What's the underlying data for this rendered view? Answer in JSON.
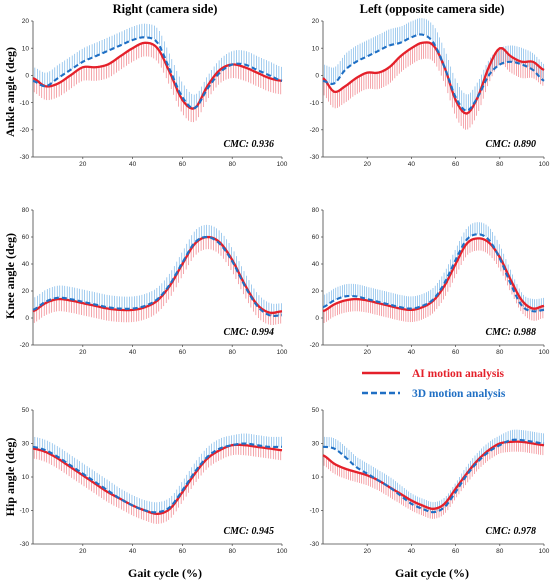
{
  "figure": {
    "column_titles": [
      "Right (camera side)",
      "Left (opposite camera side)"
    ],
    "row_labels": [
      "Ankle angle (deg)",
      "Knee angle (deg)",
      "Hip angle (deg)"
    ],
    "xlabel": "Gait cycle (%)"
  },
  "legend": {
    "placement": "between middle and bottom right panels",
    "entries": [
      {
        "name": "AI motion analysis",
        "color": "#e4202a",
        "style": "solid"
      },
      {
        "name": "3D motion analysis",
        "color": "#1f6fc4",
        "style": "dashed"
      }
    ]
  },
  "colors": {
    "ai": "#e4202a",
    "ai_band": "#f08088",
    "mocap": "#1f6fc4",
    "mocap_band": "#7ab6e8"
  },
  "chart_data": [
    {
      "type": "line",
      "row": "ankle",
      "side": "right",
      "annotation": "CMC: 0.936",
      "xlim": [
        0,
        100
      ],
      "ylim": [
        -30,
        20
      ],
      "xticks": [
        20,
        40,
        60,
        80,
        100
      ],
      "yticks": [
        -30,
        -20,
        -10,
        0,
        10,
        20
      ],
      "x": [
        0,
        5,
        10,
        15,
        20,
        25,
        30,
        35,
        40,
        45,
        50,
        55,
        60,
        65,
        70,
        75,
        80,
        85,
        90,
        95,
        100
      ],
      "series": [
        {
          "name": "AI motion analysis",
          "values": [
            -1,
            -4,
            -3,
            0,
            3,
            3,
            4,
            7,
            10,
            12,
            10,
            1,
            -9,
            -12,
            -4,
            2,
            4,
            3,
            1,
            -1,
            -2
          ],
          "band": 5
        },
        {
          "name": "3D motion analysis",
          "values": [
            -2,
            -4,
            -1,
            2,
            5,
            7,
            9,
            11,
            13,
            14,
            12,
            2,
            -8,
            -12,
            -5,
            1,
            4,
            4,
            2,
            0,
            -2
          ],
          "band": 5
        }
      ]
    },
    {
      "type": "line",
      "row": "ankle",
      "side": "left",
      "annotation": "CMC: 0.890",
      "xlim": [
        0,
        100
      ],
      "ylim": [
        -30,
        20
      ],
      "xticks": [
        20,
        40,
        60,
        80,
        100
      ],
      "yticks": [
        -30,
        -20,
        -10,
        0,
        10,
        20
      ],
      "x": [
        0,
        5,
        10,
        15,
        20,
        25,
        30,
        35,
        40,
        45,
        50,
        55,
        60,
        65,
        70,
        75,
        80,
        85,
        90,
        95,
        100
      ],
      "series": [
        {
          "name": "AI motion analysis",
          "values": [
            -1,
            -6,
            -4,
            -1,
            1,
            1,
            3,
            7,
            10,
            12,
            11,
            3,
            -9,
            -14,
            -8,
            3,
            10,
            7,
            5,
            5,
            2
          ],
          "band": 6
        },
        {
          "name": "3D motion analysis",
          "values": [
            -2,
            -3,
            2,
            5,
            7,
            9,
            11,
            12,
            14,
            15,
            12,
            3,
            -8,
            -13,
            -8,
            0,
            4,
            5,
            4,
            2,
            -2
          ],
          "band": 6
        }
      ]
    },
    {
      "type": "line",
      "row": "knee",
      "side": "right",
      "annotation": "CMC: 0.994",
      "xlim": [
        0,
        100
      ],
      "ylim": [
        -20,
        80
      ],
      "xticks": [
        20,
        40,
        60,
        80,
        100
      ],
      "yticks": [
        -20,
        0,
        20,
        40,
        60,
        80
      ],
      "x": [
        0,
        5,
        10,
        15,
        20,
        25,
        30,
        35,
        40,
        45,
        50,
        55,
        60,
        65,
        70,
        75,
        80,
        85,
        90,
        95,
        100
      ],
      "series": [
        {
          "name": "AI motion analysis",
          "values": [
            5,
            11,
            14,
            13,
            11,
            9,
            7,
            6,
            6,
            8,
            13,
            24,
            40,
            55,
            60,
            56,
            43,
            25,
            10,
            4,
            5
          ],
          "band": 9
        },
        {
          "name": "3D motion analysis",
          "values": [
            6,
            12,
            15,
            14,
            12,
            10,
            8,
            7,
            7,
            9,
            14,
            25,
            41,
            56,
            60,
            55,
            42,
            24,
            9,
            2,
            2
          ],
          "band": 9
        }
      ]
    },
    {
      "type": "line",
      "row": "knee",
      "side": "left",
      "annotation": "CMC: 0.988",
      "xlim": [
        0,
        100
      ],
      "ylim": [
        -20,
        80
      ],
      "xticks": [
        20,
        40,
        60,
        80,
        100
      ],
      "yticks": [
        -20,
        0,
        20,
        40,
        60,
        80
      ],
      "x": [
        0,
        5,
        10,
        15,
        20,
        25,
        30,
        35,
        40,
        45,
        50,
        55,
        60,
        65,
        70,
        75,
        80,
        85,
        90,
        95,
        100
      ],
      "series": [
        {
          "name": "AI motion analysis",
          "values": [
            5,
            10,
            13,
            14,
            13,
            11,
            9,
            7,
            6,
            8,
            13,
            24,
            40,
            55,
            59,
            56,
            45,
            28,
            13,
            7,
            9
          ],
          "band": 9
        },
        {
          "name": "3D motion analysis",
          "values": [
            8,
            13,
            16,
            16,
            14,
            12,
            10,
            8,
            7,
            9,
            14,
            26,
            43,
            58,
            62,
            58,
            44,
            25,
            9,
            5,
            6
          ],
          "band": 9
        }
      ]
    },
    {
      "type": "line",
      "row": "hip",
      "side": "right",
      "annotation": "CMC: 0.945",
      "xlim": [
        0,
        100
      ],
      "ylim": [
        -30,
        50
      ],
      "xticks": [
        20,
        40,
        60,
        80,
        100
      ],
      "yticks": [
        -30,
        -10,
        10,
        30,
        50
      ],
      "x": [
        0,
        5,
        10,
        15,
        20,
        25,
        30,
        35,
        40,
        45,
        50,
        55,
        60,
        65,
        70,
        75,
        80,
        85,
        90,
        95,
        100
      ],
      "series": [
        {
          "name": "AI motion analysis",
          "values": [
            27,
            25,
            21,
            16,
            11,
            6,
            1,
            -3,
            -7,
            -10,
            -12,
            -9,
            1,
            12,
            21,
            26,
            29,
            29,
            28,
            27,
            26
          ],
          "band": 6
        },
        {
          "name": "3D motion analysis",
          "values": [
            28,
            26,
            22,
            17,
            12,
            7,
            2,
            -3,
            -7,
            -10,
            -11,
            -8,
            2,
            13,
            22,
            27,
            29,
            30,
            29,
            28,
            28
          ],
          "band": 6
        }
      ]
    },
    {
      "type": "line",
      "row": "hip",
      "side": "left",
      "annotation": "CMC: 0.978",
      "xlim": [
        0,
        100
      ],
      "ylim": [
        -30,
        50
      ],
      "xticks": [
        20,
        40,
        60,
        80,
        100
      ],
      "yticks": [
        -30,
        -10,
        10,
        30,
        50
      ],
      "x": [
        0,
        5,
        10,
        15,
        20,
        25,
        30,
        35,
        40,
        45,
        50,
        55,
        60,
        65,
        70,
        75,
        80,
        85,
        90,
        95,
        100
      ],
      "series": [
        {
          "name": "AI motion analysis",
          "values": [
            23,
            18,
            15,
            13,
            11,
            8,
            4,
            0,
            -4,
            -7,
            -9,
            -6,
            3,
            12,
            20,
            26,
            30,
            31,
            31,
            30,
            29
          ],
          "band": 6
        },
        {
          "name": "3D motion analysis",
          "values": [
            28,
            27,
            22,
            16,
            12,
            8,
            4,
            -1,
            -6,
            -9,
            -11,
            -8,
            1,
            11,
            19,
            25,
            29,
            32,
            32,
            31,
            30
          ],
          "band": 6
        }
      ]
    }
  ]
}
